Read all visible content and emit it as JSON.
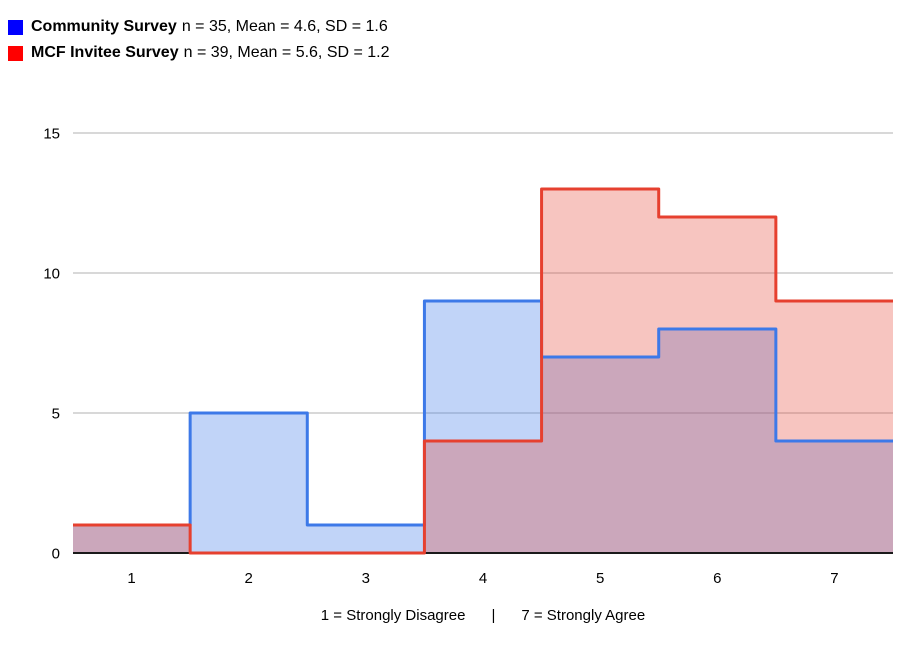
{
  "legend": {
    "items": [
      {
        "name": "Community Survey",
        "stats": "n = 35, Mean = 4.6, SD = 1.6",
        "swatch_color": "#0000ff"
      },
      {
        "name": "MCF Invitee Survey",
        "stats": "n = 39, Mean = 5.6, SD = 1.2",
        "swatch_color": "#ff0000"
      }
    ]
  },
  "chart_data": {
    "type": "area",
    "subtype": "step-histogram",
    "categories": [
      1,
      2,
      3,
      4,
      5,
      6,
      7
    ],
    "series": [
      {
        "name": "Community Survey",
        "n": 35,
        "mean": 4.6,
        "sd": 1.6,
        "values": [
          1,
          5,
          1,
          9,
          7,
          8,
          4
        ],
        "stroke_color": "#3d79e8",
        "fill_color": "rgba(61,121,232,0.32)"
      },
      {
        "name": "MCF Invitee Survey",
        "n": 39,
        "mean": 5.6,
        "sd": 1.2,
        "values": [
          1,
          0,
          0,
          4,
          13,
          12,
          9
        ],
        "stroke_color": "#e6402f",
        "fill_color": "rgba(230,64,47,0.30)"
      }
    ],
    "title": "",
    "xlabel": "1 = Strongly Disagree    |    7 = Strongly Agree",
    "ylabel": "",
    "ylim": [
      0,
      15
    ],
    "yticks": [
      0,
      5,
      10,
      15
    ],
    "grid": true,
    "gridline_color": "#cccccc",
    "baseline_color": "#1a1a1a",
    "legend_position": "top-left"
  },
  "footer": {
    "caption_left": "1 = Strongly Disagree",
    "caption_divider": "|",
    "caption_right": "7 = Strongly Agree"
  }
}
